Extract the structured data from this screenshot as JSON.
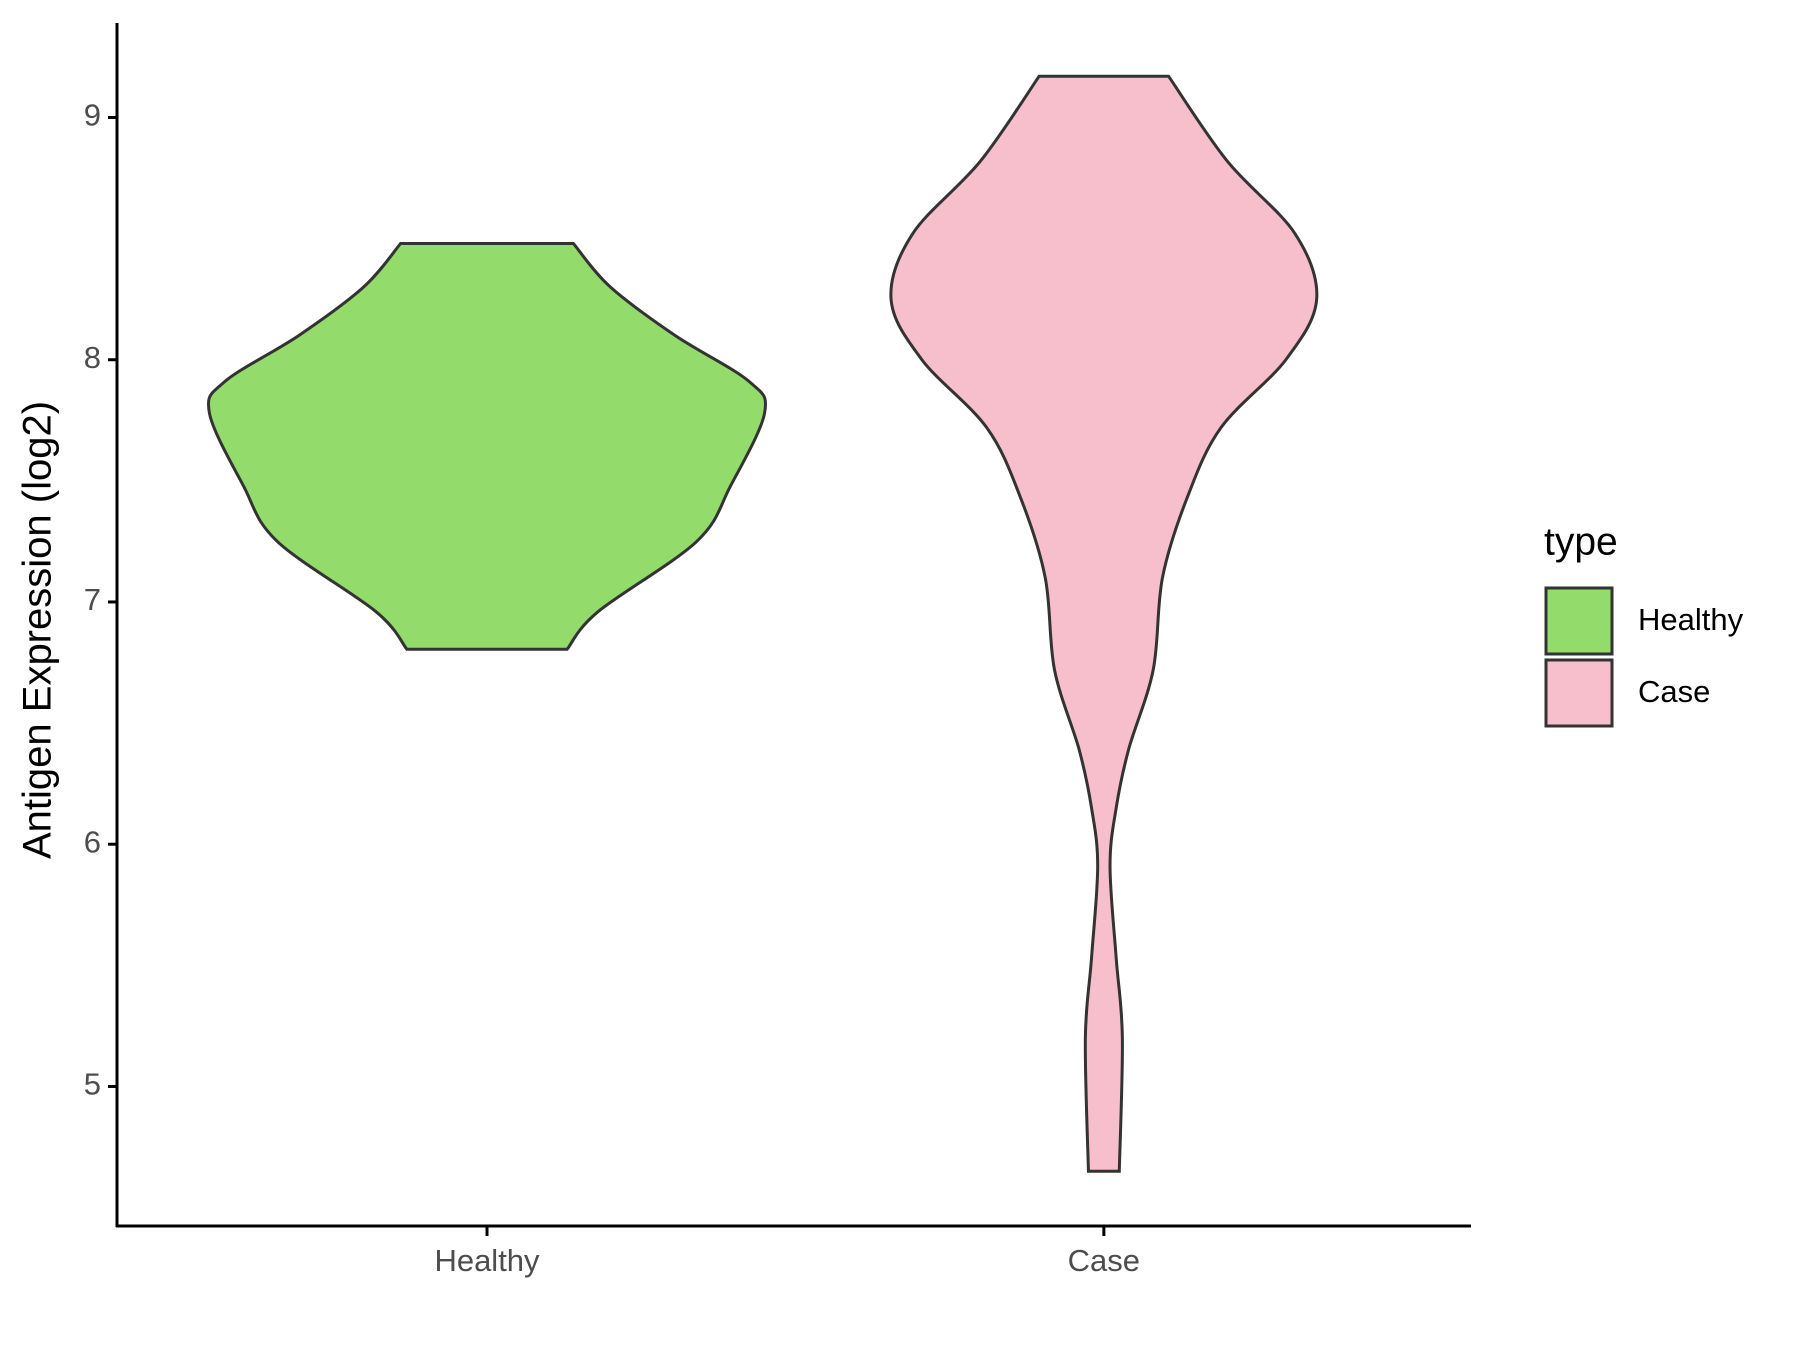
{
  "chart_data": {
    "type": "violin",
    "y_label": "Antigen Expression (log2)",
    "categories": [
      "Healthy",
      "Case"
    ],
    "ylim": [
      4.424,
      9.39
    ],
    "yticks": [
      5,
      6,
      7,
      8,
      9
    ],
    "legend_title": "type",
    "legend_position": "right",
    "series": [
      {
        "name": "Healthy",
        "color": "#93dc6b",
        "y": [
          6.805,
          6.96,
          7.25,
          7.48,
          7.78,
          7.91,
          8.1,
          8.3,
          8.48
        ],
        "widths": [
          0.26,
          0.36,
          0.68,
          0.79,
          0.9,
          0.85,
          0.61,
          0.4,
          0.28
        ]
      },
      {
        "name": "Case",
        "color": "#f7bfcb",
        "y": [
          4.65,
          5.2,
          5.53,
          5.91,
          6.15,
          6.39,
          6.72,
          7.1,
          7.43,
          7.72,
          8.0,
          8.25,
          8.52,
          8.82,
          9.17
        ],
        "widths": [
          0.05,
          0.06,
          0.04,
          0.02,
          0.04,
          0.08,
          0.16,
          0.19,
          0.27,
          0.38,
          0.59,
          0.69,
          0.62,
          0.4,
          0.21
        ]
      }
    ]
  }
}
